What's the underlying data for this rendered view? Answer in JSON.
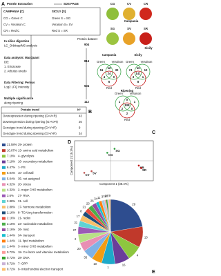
{
  "panel_labels": [
    "A",
    "B",
    "C",
    "D",
    "E"
  ],
  "panel_a": {
    "top": [
      "Protein Extraction",
      "SDS PAGE"
    ],
    "groups": [
      "CAMPANIA (C)",
      "SICILY (S)"
    ],
    "rows": [
      [
        "CG = Green C",
        "Green S = SG"
      ],
      [
        "CV = Veraison C",
        "Veraison S= SV"
      ],
      [
        "CR = Red C",
        "Red S = SR"
      ]
    ],
    "dataset_label": "Protein dataset",
    "steps": [
      {
        "lines": [
          "In silico digestion",
          "LC_Orbitrap/MS analysis"
        ],
        "count": 904
      },
      {
        "lines": [
          "Data analysis: MaxQuant",
          "DB:",
          "1. Ericaceae",
          "2. Arbutus unedo"
        ],
        "count": 816
      },
      {
        "lines": [
          "Data Filtering: Persus",
          "Log2 LFQ Intensity"
        ],
        "count": 504
      },
      {
        "lines": [
          "Multiple significance",
          "along ripening"
        ],
        "count": 112
      }
    ]
  },
  "panel_b": {
    "header": [
      "Protein trend",
      "N°"
    ],
    "rows": [
      [
        "Overexpression during ripening (G<V<R)",
        43
      ],
      [
        "Downexpression during ripening (G>V>R)",
        26
      ],
      [
        "Genotype trend during ripening (G<V<R)",
        9
      ],
      [
        "Genotype trend during ripening (G>V>R)",
        34
      ]
    ]
  },
  "photos": [
    {
      "title": "Campania",
      "labels": [
        "CG",
        "CV",
        "CR"
      ],
      "colors": [
        "#8fbf3a",
        "#e0b030",
        "#d0281c"
      ]
    },
    {
      "title": "Sicily",
      "labels": [
        "SG",
        "SV",
        "SR"
      ],
      "colors": [
        "#9cc440",
        "#e8a228",
        "#c8201a"
      ]
    }
  ],
  "venn": [
    {
      "title": "Campania",
      "sets": [
        "Green",
        "Veraison",
        "Red"
      ],
      "regions": [
        51,
        12,
        30,
        4,
        24,
        0,
        6
      ]
    },
    {
      "title": "Sicily",
      "sets": [
        "Green",
        "Veraison",
        "Red"
      ],
      "regions": [
        74,
        11,
        10,
        3,
        141,
        1,
        8
      ]
    },
    {
      "title": "Ripening",
      "sets": [
        "Green",
        "Veraison",
        "Red"
      ],
      "regions": [
        1,
        0,
        1,
        2,
        108,
        0,
        2
      ]
    }
  ],
  "pca": {
    "xlabel": "Component 1 (38.4%)",
    "ylabel": "Component 2 (15.3%)",
    "xlim": [
      -3,
      3.5
    ],
    "ylim": [
      -2.5,
      2.5
    ],
    "points": [
      {
        "name": "SG",
        "x": 0.3,
        "y": 1.5,
        "color": "#2e9e3e"
      },
      {
        "name": "CG",
        "x": -0.3,
        "y": 1.0,
        "color": "#2e9e3e"
      },
      {
        "name": "CV",
        "x": -2.2,
        "y": -1.5,
        "color": "#c0504d"
      },
      {
        "name": "SV",
        "x": -1.6,
        "y": -1.3,
        "color": "#c0504d"
      },
      {
        "name": "CR",
        "x": 2.3,
        "y": -0.6,
        "color": "#c00000"
      },
      {
        "name": "SR",
        "x": 2.5,
        "y": -0.9,
        "color": "#c00000"
      }
    ]
  },
  "pie": {
    "type": "pie",
    "names": [
      "29- protein",
      "13- amino acid metabolism",
      "4- glycolysis",
      "16- secondary metabolism",
      "1- PS",
      "10- cell wall",
      "35- not assigned",
      "20- stress",
      "2- major CHO metabolism",
      "27- RNA",
      "31- cell",
      "17- hormone metabolism",
      "8- TCA/org transformation",
      "21- redox",
      "23- nucleotide metabolism",
      "26- misc",
      "34- transport",
      "11- lipid metabolism",
      "3- minor CHO metabolism",
      "18- Co-factor and vitamine metabolism",
      "28- DNA",
      "7- OPP",
      "9- mitochondrial electron transport"
    ],
    "codes": [
      "29",
      "13",
      "4",
      "16",
      "1",
      "10",
      "35",
      "20",
      "2",
      "27",
      "31",
      "17",
      "8",
      "21",
      "23",
      "26",
      "34",
      "11",
      "3",
      "18",
      "28",
      "7",
      "9"
    ],
    "values": [
      21.58,
      10.07,
      7.19,
      7.19,
      6.47,
      5.04,
      5.04,
      4.32,
      4.32,
      3.6,
      2.88,
      2.88,
      2.16,
      2.16,
      2.16,
      2.16,
      1.44,
      1.44,
      1.44,
      0.72,
      0.72,
      0.72,
      0.72
    ],
    "value_labels": [
      "21.58%",
      "10.07%",
      "7.19%",
      "7.19%",
      "6.47%",
      "5.04%",
      "5.04%",
      "4.32%",
      "4.32%",
      "3.6%",
      "2.88%",
      "2.88%",
      "2.16%",
      "2.16%",
      "2.16%",
      "2.16%",
      "1.44%",
      "1.44%",
      "1.44%",
      "0.72%",
      "0.72%",
      "0.72%",
      "0.72%"
    ],
    "colors": [
      "#2e4d8f",
      "#c0392b",
      "#8dc63f",
      "#6a3d9a",
      "#1fa9c9",
      "#f39c12",
      "#7fb2e5",
      "#e88fb4",
      "#b8e186",
      "#9b59b6",
      "#5fd3d3",
      "#f7c06b",
      "#1f4e79",
      "#e74c3c",
      "#4daf4a",
      "#984ea3",
      "#17becf",
      "#ff7f0e",
      "#a6cee3",
      "#fb9a99",
      "#33a02c",
      "#cab2d6",
      "#fdbf6f"
    ]
  }
}
